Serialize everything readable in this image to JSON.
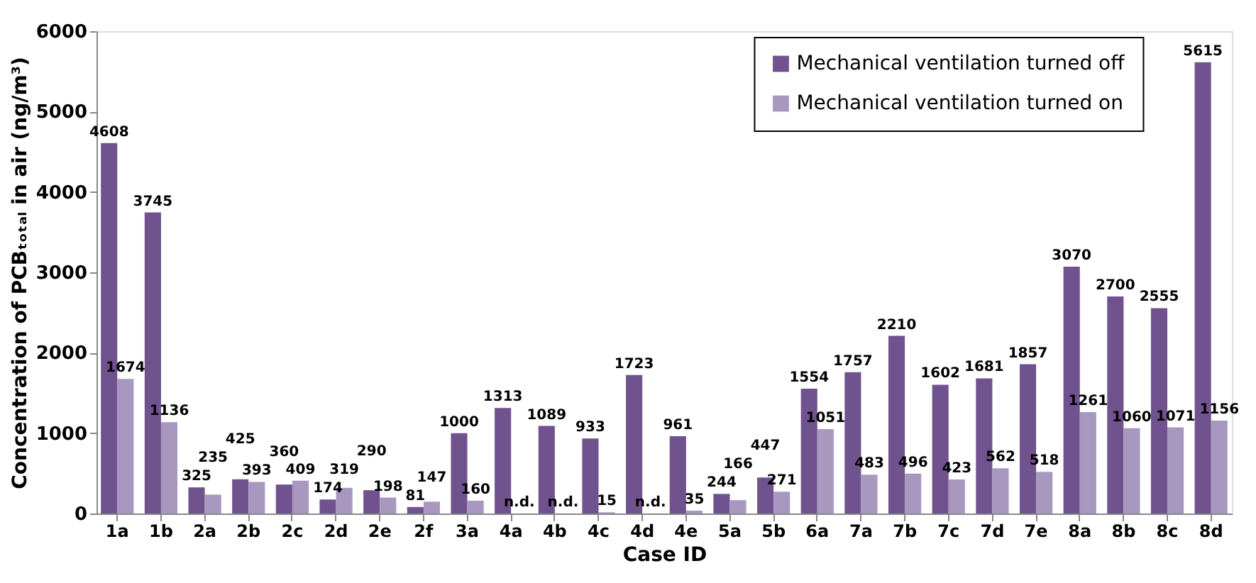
{
  "chart_data": {
    "type": "bar",
    "xlabel": "Case ID",
    "ylabel": "Concentration of PCBₜₒₜₐₗ in air (ng/m³)",
    "categories": [
      "1a",
      "1b",
      "2a",
      "2b",
      "2c",
      "2d",
      "2e",
      "2f",
      "3a",
      "4a",
      "4b",
      "4c",
      "4d",
      "4e",
      "5a",
      "5b",
      "6a",
      "7a",
      "7b",
      "7c",
      "7d",
      "7e",
      "8a",
      "8b",
      "8c",
      "8d"
    ],
    "series": [
      {
        "name": "Mechanical ventilation turned off",
        "color": "#70528f",
        "values": [
          4608,
          3745,
          325,
          425,
          360,
          174,
          290,
          81,
          1000,
          1313,
          1089,
          933,
          1723,
          961,
          244,
          447,
          1554,
          1757,
          2210,
          1602,
          1681,
          1857,
          3070,
          2700,
          2555,
          5615
        ],
        "value_labels": [
          "4608",
          "3745",
          "325",
          "425",
          "360",
          "174",
          "290",
          "81",
          "1000",
          "1313",
          "1089",
          "933",
          "1723",
          "961",
          "244",
          "447",
          "1554",
          "1757",
          "2210",
          "1602",
          "1681",
          "1857",
          "3070",
          "2700",
          "2555",
          "5615"
        ]
      },
      {
        "name": "Mechanical ventilation turned on",
        "color": "#a898c0",
        "values": [
          1674,
          1136,
          235,
          393,
          409,
          319,
          198,
          147,
          160,
          null,
          null,
          15,
          null,
          35,
          166,
          271,
          1051,
          483,
          496,
          423,
          562,
          518,
          1261,
          1060,
          1071,
          1156
        ],
        "value_labels": [
          "1674",
          "1136",
          "235",
          "393",
          "409",
          "319",
          "198",
          "147",
          "160",
          "n.d.",
          "n.d.",
          "15",
          "n.d.",
          "35",
          "166",
          "271",
          "1051",
          "483",
          "496",
          "423",
          "562",
          "518",
          "1261",
          "1060",
          "1071",
          "1156"
        ]
      }
    ],
    "ylim": [
      0,
      6000
    ],
    "yticks": [
      0,
      1000,
      2000,
      3000,
      4000,
      5000,
      6000
    ],
    "grid": false,
    "legend": "top right"
  }
}
